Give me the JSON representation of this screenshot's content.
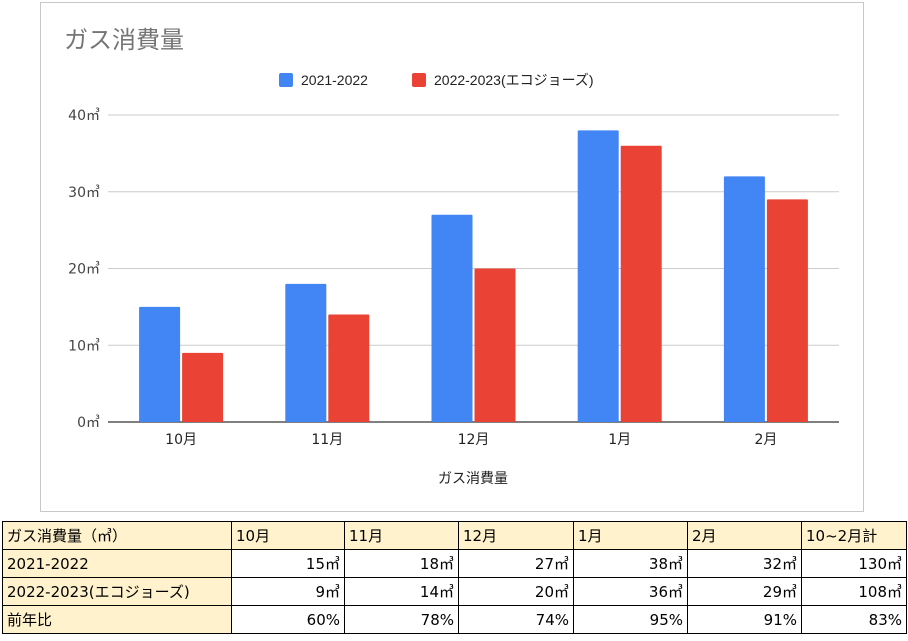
{
  "chart_data": {
    "type": "bar",
    "title": "ガス消費量",
    "xlabel": "ガス消費量",
    "ylabel": "",
    "categories": [
      "10月",
      "11月",
      "12月",
      "1月",
      "2月"
    ],
    "series": [
      {
        "name": "2021-2022",
        "color": "#4285f4",
        "values": [
          15,
          18,
          27,
          38,
          32
        ]
      },
      {
        "name": "2022-2023(エコジョーズ)",
        "color": "#ea4335",
        "values": [
          9,
          14,
          20,
          36,
          29
        ]
      }
    ],
    "ylim": [
      0,
      40
    ],
    "yticks": [
      0,
      10,
      20,
      30,
      40
    ],
    "ytick_labels": [
      "0㎥",
      "10㎥",
      "20㎥",
      "30㎥",
      "40㎥"
    ],
    "grid": true,
    "legend": "top-center"
  },
  "table": {
    "headers": [
      "ガス消費量（㎥）",
      "10月",
      "11月",
      "12月",
      "1月",
      "2月",
      "10~2月計"
    ],
    "rows": [
      {
        "label": "2021-2022",
        "cells": [
          "15㎥",
          "18㎥",
          "27㎥",
          "38㎥",
          "32㎥",
          "130㎥"
        ]
      },
      {
        "label": "2022-2023(エコジョーズ)",
        "cells": [
          "9㎥",
          "14㎥",
          "20㎥",
          "36㎥",
          "29㎥",
          "108㎥"
        ]
      },
      {
        "label": "前年比",
        "cells": [
          "60%",
          "78%",
          "74%",
          "95%",
          "91%",
          "83%"
        ]
      }
    ]
  }
}
